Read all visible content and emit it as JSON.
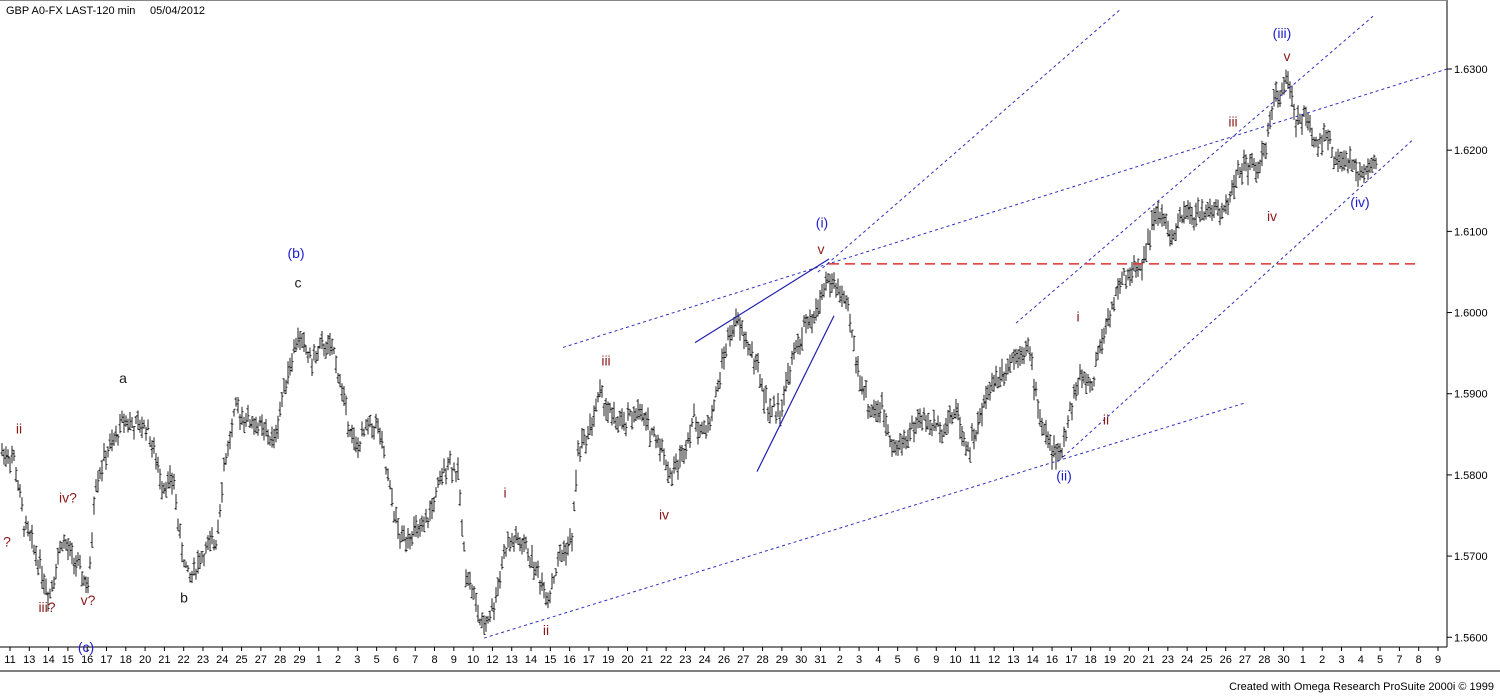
{
  "header": {
    "symbol": "GBP A0-FX LAST-120 min",
    "date": "05/04/2012"
  },
  "footer": {
    "credit": "Created with Omega Research ProSuite 2000i © 1999"
  },
  "chart_data": {
    "type": "ohlc-bar",
    "ylim": [
      1.5588,
      1.6385
    ],
    "y_ticks": [
      "1.6300",
      "1.6200",
      "1.6100",
      "1.6000",
      "1.5900",
      "1.5800",
      "1.5700",
      "1.5600"
    ],
    "x_tick_labels": [
      "11",
      "13",
      "14",
      "15",
      "16",
      "17",
      "18",
      "20",
      "21",
      "22",
      "23",
      "24",
      "25",
      "27",
      "28",
      "29",
      "1",
      "2",
      "3",
      "5",
      "6",
      "7",
      "8",
      "9",
      "10",
      "12",
      "13",
      "14",
      "15",
      "16",
      "17",
      "19",
      "20",
      "21",
      "22",
      "23",
      "24",
      "26",
      "27",
      "28",
      "29",
      "30",
      "31",
      "2",
      "3",
      "4",
      "5",
      "6",
      "9",
      "10",
      "11",
      "12",
      "13",
      "14",
      "16",
      "17",
      "18",
      "19",
      "20",
      "21",
      "23",
      "24",
      "25",
      "26",
      "27",
      "28",
      "30",
      "1",
      "2",
      "3",
      "4",
      "5",
      "7",
      "8",
      "9"
    ],
    "price_path": [
      [
        0,
        1.583
      ],
      [
        14,
        1.582
      ],
      [
        24,
        1.574
      ],
      [
        40,
        1.569
      ],
      [
        49,
        1.565
      ],
      [
        62,
        1.572
      ],
      [
        76,
        1.569
      ],
      [
        89,
        1.566
      ],
      [
        95,
        1.579
      ],
      [
        108,
        1.583
      ],
      [
        114,
        1.584
      ],
      [
        124,
        1.587
      ],
      [
        134,
        1.586
      ],
      [
        147,
        1.586
      ],
      [
        162,
        1.579
      ],
      [
        174,
        1.579
      ],
      [
        180,
        1.572
      ],
      [
        189,
        1.567
      ],
      [
        201,
        1.57
      ],
      [
        216,
        1.572
      ],
      [
        224,
        1.581
      ],
      [
        236,
        1.588
      ],
      [
        246,
        1.587
      ],
      [
        259,
        1.586
      ],
      [
        274,
        1.584
      ],
      [
        286,
        1.592
      ],
      [
        298,
        1.597
      ],
      [
        312,
        1.594
      ],
      [
        324,
        1.596
      ],
      [
        334,
        1.595
      ],
      [
        346,
        1.588
      ],
      [
        356,
        1.583
      ],
      [
        368,
        1.586
      ],
      [
        378,
        1.586
      ],
      [
        390,
        1.578
      ],
      [
        400,
        1.572
      ],
      [
        412,
        1.573
      ],
      [
        423,
        1.573
      ],
      [
        435,
        1.577
      ],
      [
        448,
        1.582
      ],
      [
        458,
        1.58
      ],
      [
        465,
        1.569
      ],
      [
        474,
        1.565
      ],
      [
        482,
        1.561
      ],
      [
        494,
        1.564
      ],
      [
        505,
        1.571
      ],
      [
        515,
        1.572
      ],
      [
        526,
        1.571
      ],
      [
        537,
        1.568
      ],
      [
        548,
        1.565
      ],
      [
        560,
        1.57
      ],
      [
        572,
        1.572
      ],
      [
        578,
        1.583
      ],
      [
        588,
        1.585
      ],
      [
        600,
        1.59
      ],
      [
        612,
        1.587
      ],
      [
        624,
        1.586
      ],
      [
        636,
        1.588
      ],
      [
        648,
        1.586
      ],
      [
        660,
        1.584
      ],
      [
        670,
        1.58
      ],
      [
        681,
        1.582
      ],
      [
        693,
        1.587
      ],
      [
        705,
        1.585
      ],
      [
        715,
        1.589
      ],
      [
        726,
        1.596
      ],
      [
        736,
        1.599
      ],
      [
        748,
        1.596
      ],
      [
        758,
        1.593
      ],
      [
        768,
        1.588
      ],
      [
        780,
        1.588
      ],
      [
        792,
        1.594
      ],
      [
        804,
        1.598
      ],
      [
        814,
        1.599
      ],
      [
        826,
        1.604
      ],
      [
        838,
        1.603
      ],
      [
        848,
        1.6
      ],
      [
        858,
        1.593
      ],
      [
        870,
        1.588
      ],
      [
        882,
        1.588
      ],
      [
        896,
        1.583
      ],
      [
        908,
        1.585
      ],
      [
        920,
        1.587
      ],
      [
        932,
        1.586
      ],
      [
        944,
        1.586
      ],
      [
        956,
        1.588
      ],
      [
        968,
        1.583
      ],
      [
        978,
        1.586
      ],
      [
        990,
        1.591
      ],
      [
        1004,
        1.593
      ],
      [
        1016,
        1.595
      ],
      [
        1028,
        1.596
      ],
      [
        1040,
        1.587
      ],
      [
        1052,
        1.583
      ],
      [
        1060,
        1.582
      ],
      [
        1070,
        1.588
      ],
      [
        1080,
        1.592
      ],
      [
        1092,
        1.591
      ],
      [
        1100,
        1.596
      ],
      [
        1110,
        1.6
      ],
      [
        1122,
        1.604
      ],
      [
        1132,
        1.605
      ],
      [
        1142,
        1.606
      ],
      [
        1152,
        1.611
      ],
      [
        1162,
        1.612
      ],
      [
        1172,
        1.609
      ],
      [
        1184,
        1.612
      ],
      [
        1200,
        1.612
      ],
      [
        1212,
        1.613
      ],
      [
        1222,
        1.612
      ],
      [
        1234,
        1.616
      ],
      [
        1244,
        1.618
      ],
      [
        1256,
        1.618
      ],
      [
        1264,
        1.619
      ],
      [
        1272,
        1.625
      ],
      [
        1282,
        1.628
      ],
      [
        1288,
        1.628
      ],
      [
        1296,
        1.624
      ],
      [
        1306,
        1.624
      ],
      [
        1316,
        1.621
      ],
      [
        1326,
        1.622
      ],
      [
        1336,
        1.618
      ],
      [
        1346,
        1.619
      ],
      [
        1356,
        1.617
      ],
      [
        1366,
        1.618
      ],
      [
        1376,
        1.618
      ]
    ],
    "trendlines": [
      {
        "style": "dashed-blue",
        "from": [
          563,
          1.5957
        ],
        "to": [
          1447,
          1.63
        ]
      },
      {
        "style": "dashed-blue",
        "from": [
          484,
          1.5599
        ],
        "to": [
          1246,
          1.5889
        ]
      },
      {
        "style": "dashed-blue",
        "from": [
          818,
          1.605
        ],
        "to": [
          1120,
          1.6373
        ]
      },
      {
        "style": "dashed-blue",
        "from": [
          1016,
          1.5987
        ],
        "to": [
          1373,
          1.6365
        ]
      },
      {
        "style": "dashed-blue",
        "from": [
          1063,
          1.5822
        ],
        "to": [
          1413,
          1.6213
        ]
      },
      {
        "style": "solid-blue",
        "from": [
          695,
          1.5963
        ],
        "to": [
          829,
          1.6066
        ]
      },
      {
        "style": "solid-blue",
        "from": [
          757,
          1.5804
        ],
        "to": [
          834,
          1.5996
        ]
      },
      {
        "style": "dashed-red",
        "from": [
          829,
          1.606
        ],
        "to": [
          1420,
          1.606
        ]
      }
    ],
    "wave_labels": [
      {
        "text": "ii",
        "x": 19,
        "price": 1.5851,
        "color": "#8b1a1a"
      },
      {
        "text": "iv?",
        "x": 68,
        "price": 1.5766,
        "color": "#8b1a1a"
      },
      {
        "text": "iii?",
        "x": 47,
        "price": 1.5631,
        "color": "#8b1a1a"
      },
      {
        "text": "v?",
        "x": 88,
        "price": 1.564,
        "color": "#8b1a1a"
      },
      {
        "text": "?",
        "x": 7,
        "price": 1.5712,
        "color": "#8b1a1a"
      },
      {
        "text": "(c)",
        "x": 86,
        "price": 1.5582,
        "color": "#1c1cd0"
      },
      {
        "text": "a",
        "x": 123,
        "price": 1.5913,
        "color": "#1a1a1a"
      },
      {
        "text": "b",
        "x": 184,
        "price": 1.5643,
        "color": "#1a1a1a"
      },
      {
        "text": "(b)",
        "x": 296,
        "price": 1.6067,
        "color": "#1c1cd0"
      },
      {
        "text": "c",
        "x": 298,
        "price": 1.6031,
        "color": "#1a1a1a"
      },
      {
        "text": "i",
        "x": 505,
        "price": 1.5772,
        "color": "#8b1a1a"
      },
      {
        "text": "ii",
        "x": 546,
        "price": 1.5603,
        "color": "#8b1a1a"
      },
      {
        "text": "iii",
        "x": 606,
        "price": 1.5935,
        "color": "#8b1a1a"
      },
      {
        "text": "iv",
        "x": 664,
        "price": 1.5745,
        "color": "#8b1a1a"
      },
      {
        "text": "(i)",
        "x": 822,
        "price": 1.6105,
        "color": "#1c1cd0"
      },
      {
        "text": "v",
        "x": 821,
        "price": 1.6072,
        "color": "#8b1a1a"
      },
      {
        "text": "i",
        "x": 1078,
        "price": 1.5989,
        "color": "#8b1a1a"
      },
      {
        "text": "ii",
        "x": 1106,
        "price": 1.5862,
        "color": "#8b1a1a"
      },
      {
        "text": "(ii)",
        "x": 1064,
        "price": 1.5793,
        "color": "#1c1cd0"
      },
      {
        "text": "iii",
        "x": 1233,
        "price": 1.6229,
        "color": "#8b1a1a"
      },
      {
        "text": "iv",
        "x": 1272,
        "price": 1.6113,
        "color": "#8b1a1a"
      },
      {
        "text": "(iii)",
        "x": 1282,
        "price": 1.6338,
        "color": "#1c1cd0"
      },
      {
        "text": "v",
        "x": 1287,
        "price": 1.631,
        "color": "#8b1a1a"
      },
      {
        "text": "(iv)",
        "x": 1360,
        "price": 1.613,
        "color": "#1c1cd0"
      }
    ]
  }
}
